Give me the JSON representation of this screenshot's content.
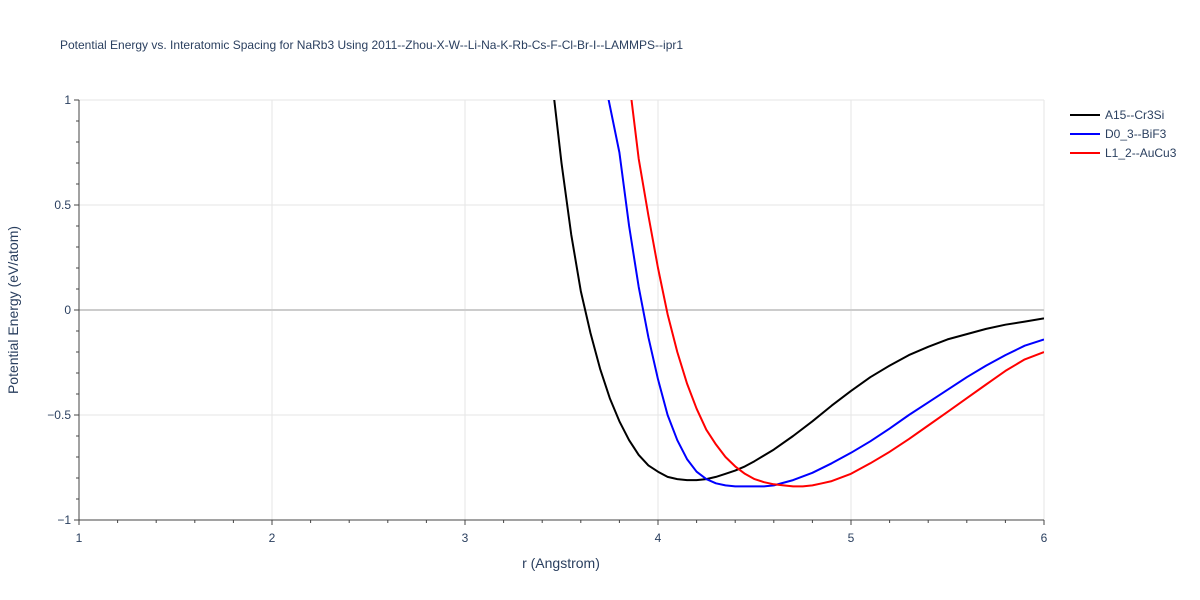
{
  "chart_data": {
    "type": "line",
    "title": "Potential Energy vs. Interatomic Spacing for NaRb3 Using 2011--Zhou-X-W--Li-Na-K-Rb-Cs-F-Cl-Br-I--LAMMPS--ipr1",
    "xlabel": "r (Angstrom)",
    "ylabel": "Potential Energy (eV/atom)",
    "xlim": [
      1,
      6
    ],
    "ylim": [
      -1,
      1
    ],
    "xticks": [
      1,
      2,
      3,
      4,
      5,
      6
    ],
    "xtick_labels": [
      "1",
      "2",
      "3",
      "4",
      "5",
      "6"
    ],
    "yticks": [
      -1,
      -0.5,
      0,
      0.5,
      1
    ],
    "ytick_labels": [
      "−1",
      "−0.5",
      "0",
      "0.5",
      "1"
    ],
    "grid": true,
    "legend_position": "top-right",
    "series": [
      {
        "name": "A15--Cr3Si",
        "color": "#000000",
        "x": [
          3.46,
          3.5,
          3.55,
          3.6,
          3.65,
          3.7,
          3.75,
          3.8,
          3.85,
          3.9,
          3.95,
          4.0,
          4.05,
          4.1,
          4.15,
          4.2,
          4.25,
          4.3,
          4.35,
          4.4,
          4.45,
          4.5,
          4.6,
          4.7,
          4.8,
          4.9,
          5.0,
          5.1,
          5.2,
          5.3,
          5.4,
          5.5,
          5.6,
          5.7,
          5.8,
          5.9,
          6.0
        ],
        "y": [
          1.02,
          0.7,
          0.36,
          0.09,
          -0.11,
          -0.28,
          -0.42,
          -0.53,
          -0.62,
          -0.69,
          -0.74,
          -0.77,
          -0.795,
          -0.805,
          -0.81,
          -0.81,
          -0.805,
          -0.795,
          -0.78,
          -0.765,
          -0.745,
          -0.72,
          -0.665,
          -0.6,
          -0.53,
          -0.455,
          -0.385,
          -0.32,
          -0.265,
          -0.215,
          -0.175,
          -0.14,
          -0.115,
          -0.09,
          -0.07,
          -0.055,
          -0.04
        ]
      },
      {
        "name": "D0_3--BiF3",
        "color": "#0000ff",
        "x": [
          3.74,
          3.8,
          3.85,
          3.9,
          3.95,
          4.0,
          4.05,
          4.1,
          4.15,
          4.2,
          4.25,
          4.3,
          4.35,
          4.4,
          4.45,
          4.5,
          4.55,
          4.6,
          4.7,
          4.8,
          4.9,
          5.0,
          5.1,
          5.2,
          5.3,
          5.4,
          5.5,
          5.6,
          5.7,
          5.8,
          5.9,
          6.0
        ],
        "y": [
          1.02,
          0.75,
          0.4,
          0.11,
          -0.13,
          -0.33,
          -0.5,
          -0.62,
          -0.71,
          -0.77,
          -0.805,
          -0.825,
          -0.835,
          -0.84,
          -0.84,
          -0.84,
          -0.84,
          -0.835,
          -0.81,
          -0.775,
          -0.73,
          -0.68,
          -0.625,
          -0.565,
          -0.5,
          -0.44,
          -0.38,
          -0.32,
          -0.265,
          -0.215,
          -0.17,
          -0.14
        ]
      },
      {
        "name": "L1_2--AuCu3",
        "color": "#ff0000",
        "x": [
          3.86,
          3.9,
          3.95,
          4.0,
          4.05,
          4.1,
          4.15,
          4.2,
          4.25,
          4.3,
          4.35,
          4.4,
          4.45,
          4.5,
          4.55,
          4.6,
          4.65,
          4.7,
          4.75,
          4.8,
          4.85,
          4.9,
          5.0,
          5.1,
          5.2,
          5.3,
          5.4,
          5.5,
          5.6,
          5.7,
          5.8,
          5.9,
          6.0
        ],
        "y": [
          1.02,
          0.72,
          0.45,
          0.2,
          -0.02,
          -0.2,
          -0.35,
          -0.47,
          -0.57,
          -0.64,
          -0.7,
          -0.745,
          -0.78,
          -0.805,
          -0.82,
          -0.83,
          -0.835,
          -0.84,
          -0.84,
          -0.835,
          -0.825,
          -0.815,
          -0.78,
          -0.73,
          -0.675,
          -0.615,
          -0.55,
          -0.485,
          -0.42,
          -0.355,
          -0.29,
          -0.235,
          -0.2
        ]
      }
    ]
  }
}
